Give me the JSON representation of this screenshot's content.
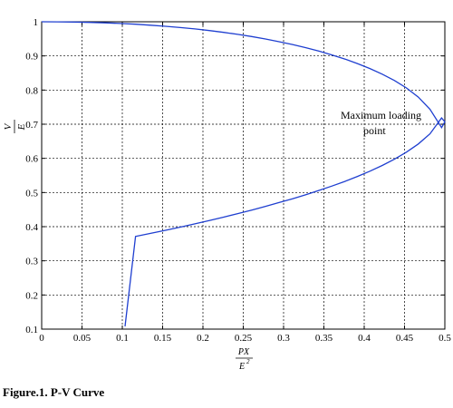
{
  "caption": "Figure.1. P-V Curve",
  "chart_data": {
    "type": "line",
    "title": "",
    "xlabel": {
      "numerator": "PX",
      "denominator": "E",
      "superscript": "2"
    },
    "ylabel": {
      "numerator": "V",
      "denominator": "E"
    },
    "xlim": [
      0,
      0.5
    ],
    "ylim": [
      0.1,
      1
    ],
    "xticks": [
      "0",
      "0.05",
      "0.1",
      "0.15",
      "0.2",
      "0.25",
      "0.3",
      "0.35",
      "0.4",
      "0.45",
      "0.5"
    ],
    "yticks": [
      "0.1",
      "0.2",
      "0.3",
      "0.4",
      "0.5",
      "0.6",
      "0.7",
      "0.8",
      "0.9",
      "1"
    ],
    "grid": true,
    "line_color": "#1f3fd0",
    "annotation": {
      "lines": [
        "Maximum loading",
        "point"
      ],
      "x": 0.42,
      "y": 0.71
    },
    "series": [
      {
        "x": [
          0.0,
          0.0199,
          0.0396,
          0.0591,
          0.0784,
          0.0975,
          0.1164,
          0.1351,
          0.1536,
          0.1719,
          0.19,
          0.2079,
          0.2256,
          0.2431,
          0.2604,
          0.2775,
          0.2944,
          0.3111,
          0.3276,
          0.3439,
          0.36,
          0.3759,
          0.3916,
          0.4071,
          0.4224,
          0.4375,
          0.4524,
          0.4671,
          0.4816,
          0.4959,
          0.5,
          0.4959,
          0.4816,
          0.4671,
          0.4524,
          0.4375,
          0.4224,
          0.4071,
          0.3916,
          0.3759,
          0.36,
          0.3439,
          0.3276,
          0.3111,
          0.2944,
          0.2775,
          0.2604,
          0.2431,
          0.2256,
          0.2079,
          0.19,
          0.1719,
          0.1536,
          0.1351,
          0.1164,
          0.1034
        ],
        "y": [
          1.0,
          0.9998,
          0.9992,
          0.9982,
          0.9968,
          0.995,
          0.9927,
          0.99,
          0.9868,
          0.9831,
          0.9789,
          0.9742,
          0.9689,
          0.963,
          0.9566,
          0.9495,
          0.9417,
          0.9333,
          0.924,
          0.9139,
          0.9029,
          0.8909,
          0.8776,
          0.863,
          0.8466,
          0.8279,
          0.8061,
          0.7794,
          0.7437,
          0.6901,
          0.7071,
          0.7182,
          0.6719,
          0.6421,
          0.6181,
          0.5975,
          0.5791,
          0.5624,
          0.547,
          0.5326,
          0.519,
          0.5061,
          0.4938,
          0.4819,
          0.4705,
          0.4594,
          0.4487,
          0.4382,
          0.428,
          0.4181,
          0.4083,
          0.3988,
          0.3894,
          0.3803,
          0.3712,
          0.1079
        ]
      }
    ]
  }
}
